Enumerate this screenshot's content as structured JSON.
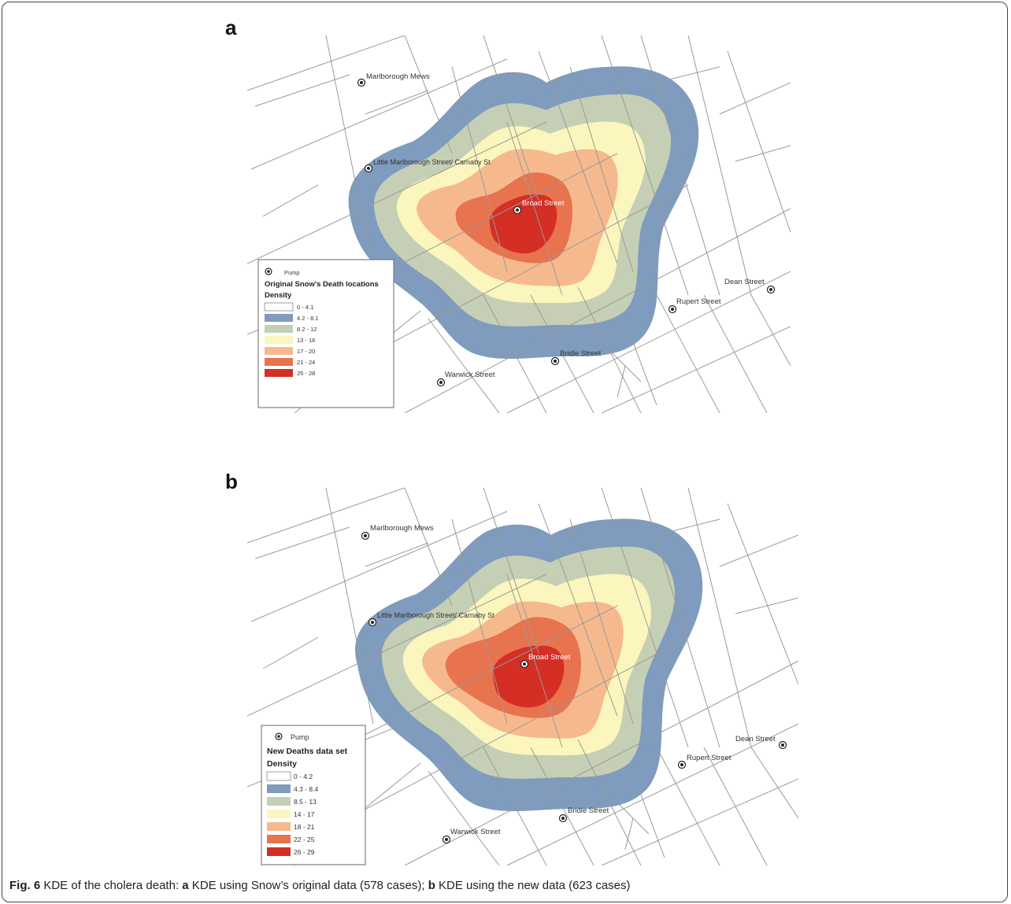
{
  "figure": {
    "caption_label": "Fig. 6",
    "caption_text_1": " KDE of the cholera death: ",
    "caption_a": "a",
    "caption_text_2": " KDE using Snow’s original data (578 cases); ",
    "caption_b": "b",
    "caption_text_3": " KDE using the new data (623 cases)"
  },
  "colors": {
    "band0": "#ffffff",
    "band1": "#7f9bbd",
    "band2": "#c5cfb5",
    "band3": "#fbf6bd",
    "band4": "#f6b98d",
    "band5": "#e8734f",
    "band6": "#d42e25",
    "street": "#9a9a9a"
  },
  "panels": [
    {
      "letter": "a",
      "legend": {
        "pump_label": "Pump",
        "title": "Original Snow's Death locations",
        "subtitle": "Density",
        "classes": [
          "0 - 4.1",
          "4.2 - 8.1",
          "8.2 - 12",
          "13 - 16",
          "17 - 20",
          "21 - 24",
          "25 - 28"
        ]
      },
      "pumps": {
        "marlborough_mews": "Marlborough Mews",
        "little_marlborough": "Little Marlborough Street/ Carnaby St",
        "broad_street": "Broad Street",
        "dean_street": "Dean Street",
        "rupert_street": "Rupert Street",
        "bridle_street": "Bridle Street",
        "warwick_street": "Warwick Street"
      }
    },
    {
      "letter": "b",
      "legend": {
        "pump_label": "Pump",
        "title": "New Deaths data set",
        "subtitle": "Density",
        "classes": [
          "0 - 4.2",
          "4.3 - 8.4",
          "8.5 - 13",
          "14 - 17",
          "18 - 21",
          "22 - 25",
          "26 - 29"
        ]
      },
      "pumps": {
        "marlborough_mews": "Marlborough Mews",
        "little_marlborough": "Little Marlborough Street/ Carnaby St",
        "broad_street": "Broad Street",
        "dean_street": "Dean Street",
        "rupert_street": "Rupert Street",
        "bridle_street": "Bridle Street",
        "warwick_street": "Warwick Street"
      }
    }
  ]
}
